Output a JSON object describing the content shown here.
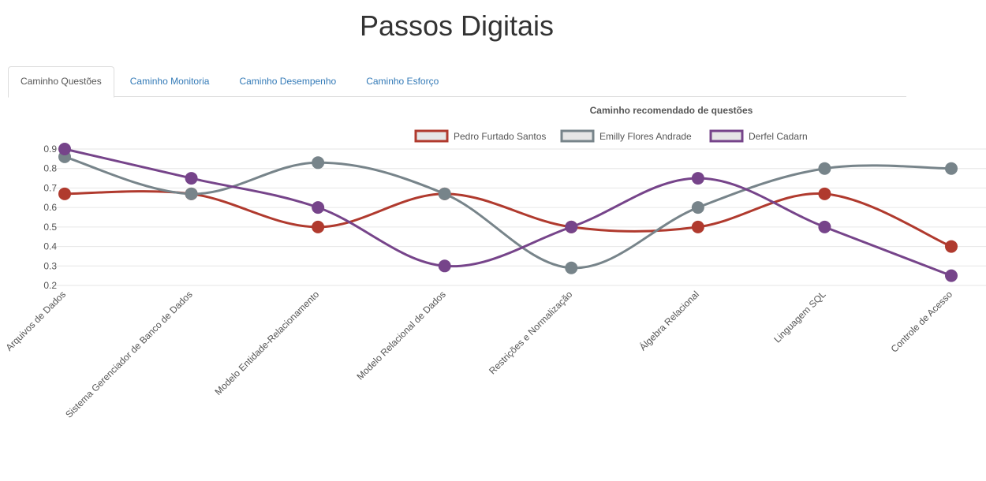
{
  "header": {
    "title": "Passos Digitais"
  },
  "tabs": [
    {
      "label": "Caminho Questões",
      "active": true
    },
    {
      "label": "Caminho Monitoria",
      "active": false
    },
    {
      "label": "Caminho Desempenho",
      "active": false
    },
    {
      "label": "Caminho Esforço",
      "active": false
    }
  ],
  "chart_data": {
    "type": "line",
    "title": "Caminho recomendado de questões",
    "xlabel": "",
    "ylabel": "",
    "ylim": [
      0.2,
      0.9
    ],
    "yticks": [
      "0.2",
      "0.3",
      "0.4",
      "0.5",
      "0.6",
      "0.7",
      "0.8",
      "0.9"
    ],
    "grid": true,
    "legend_position": "top",
    "categories": [
      "Arquivos de Dados",
      "Sistema Gerenciador de Banco de Dados",
      "Modelo Entidade-Relacionamento",
      "Modelo Relacional de Dados",
      "Restrições e Normalização",
      "Álgebra Relacional",
      "Linguagem SQL",
      "Controle de Acesso"
    ],
    "series": [
      {
        "name": "Pedro Furtado Santos",
        "color": "#b03a2e",
        "values": [
          0.67,
          0.67,
          0.5,
          0.67,
          0.5,
          0.5,
          0.67,
          0.4
        ]
      },
      {
        "name": "Emilly Flores Andrade",
        "color": "#77848a",
        "values": [
          0.86,
          0.67,
          0.83,
          0.67,
          0.29,
          0.6,
          0.8,
          0.8
        ]
      },
      {
        "name": "Derfel Cadarn",
        "color": "#76448a",
        "values": [
          0.9,
          0.75,
          0.6,
          0.3,
          0.5,
          0.75,
          0.5,
          0.25
        ]
      }
    ]
  }
}
